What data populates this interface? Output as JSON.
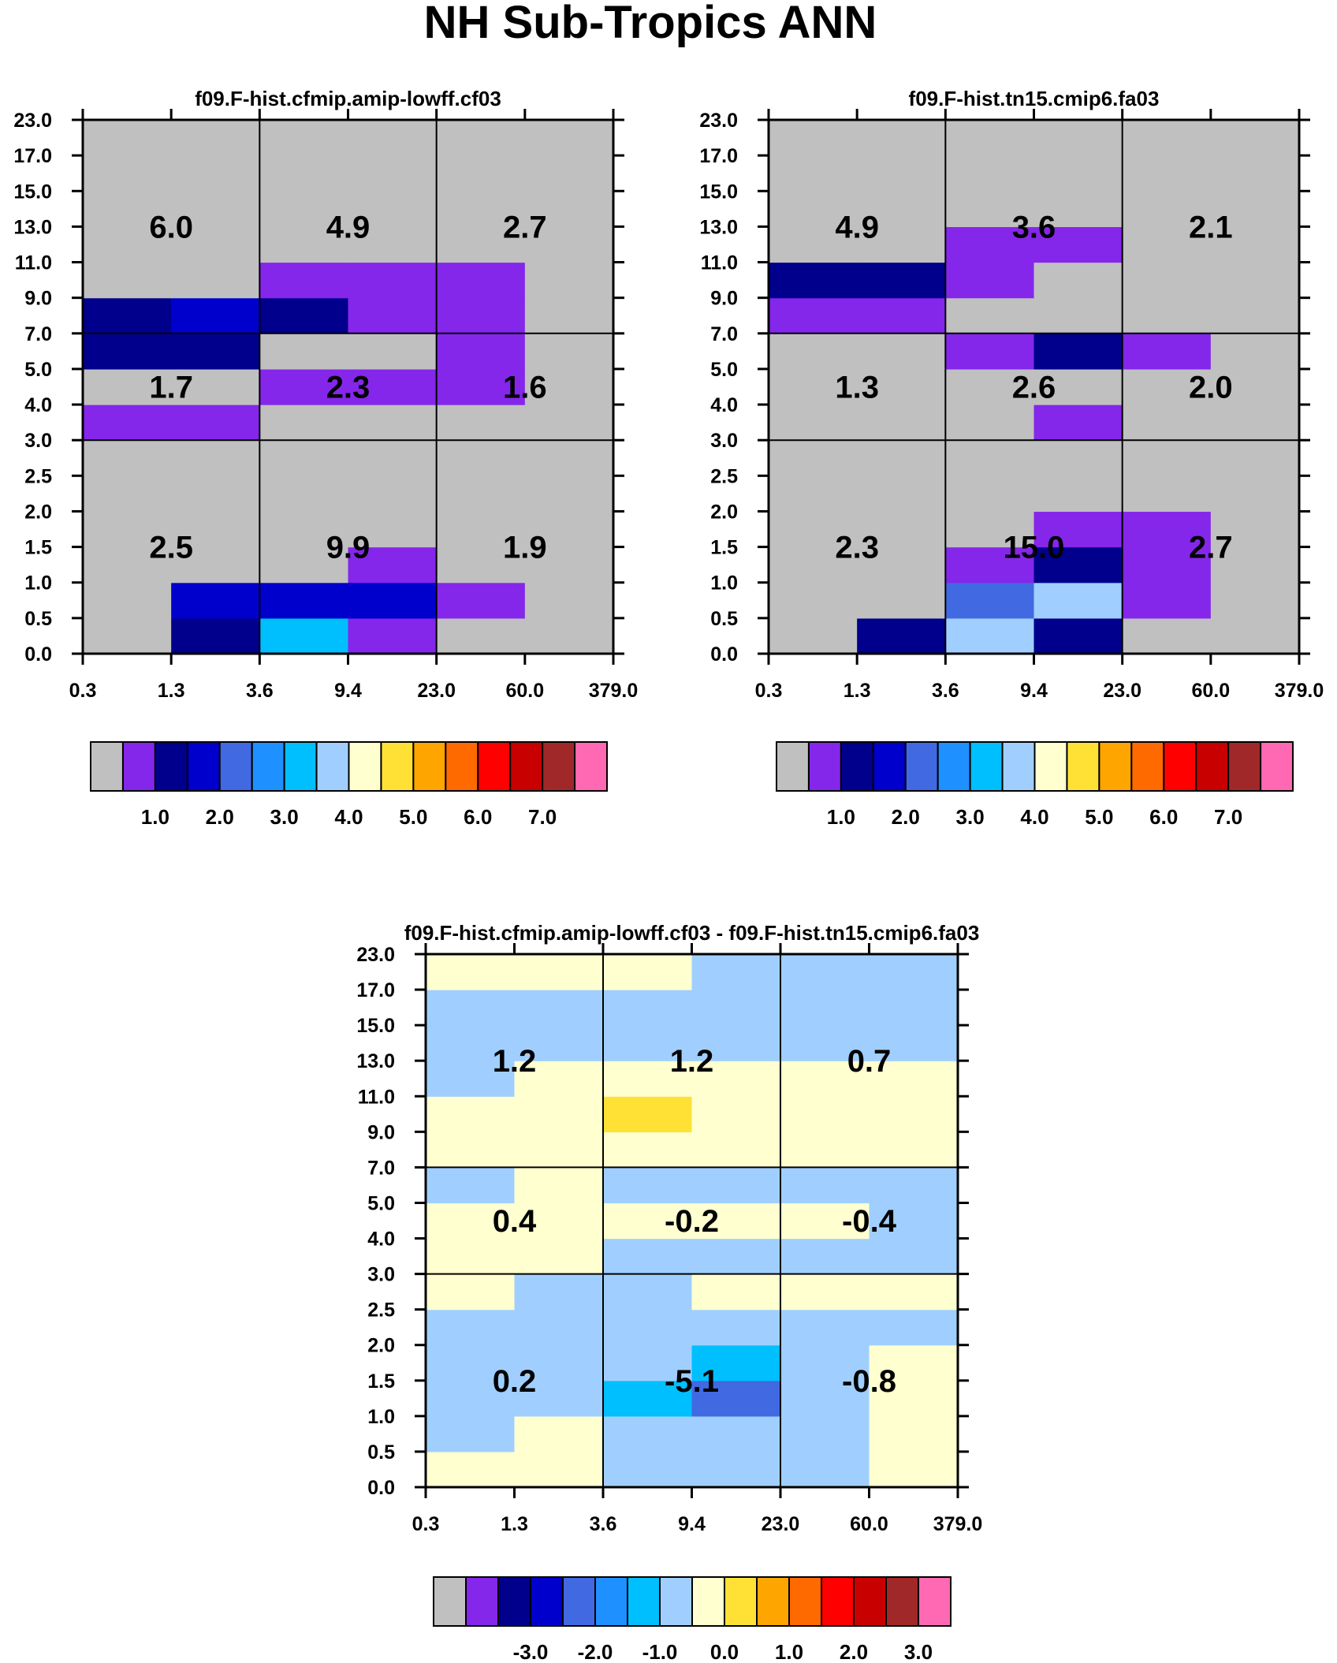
{
  "title": "NH Sub-Tropics ANN",
  "chart_data": [
    {
      "type": "heatmap",
      "id": "p1",
      "title": "f09.F-hist.cfmip.amip-lowff.cf03",
      "x_ticks": [
        "0.3",
        "1.3",
        "3.6",
        "9.4",
        "23.0",
        "60.0",
        "379.0"
      ],
      "y_ticks": [
        "0.0",
        "0.5",
        "1.0",
        "1.5",
        "2.0",
        "2.5",
        "3.0",
        "4.0",
        "5.0",
        "7.0",
        "9.0",
        "11.0",
        "13.0",
        "15.0",
        "17.0",
        "23.0"
      ],
      "block_boundaries": {
        "x_bins": [
          2,
          4
        ],
        "y_bins": [
          6,
          9
        ]
      },
      "colorbar": {
        "colors": [
          "#c0c0c0",
          "#8526eb",
          "#00008c",
          "#0000cd",
          "#4169e1",
          "#1e90ff",
          "#00bfff",
          "#a0cfff",
          "#ffffd0",
          "#ffe135",
          "#ffa500",
          "#ff6a00",
          "#ff0000",
          "#c80000",
          "#a02828",
          "#ff69b4"
        ],
        "labels": [
          "1.0",
          "2.0",
          "3.0",
          "4.0",
          "5.0",
          "6.0",
          "7.0"
        ],
        "label_start_boundary": 2
      },
      "levels_by_tau_row": [
        [
          0,
          2,
          6,
          1,
          0,
          0
        ],
        [
          0,
          3,
          3,
          3,
          1,
          0
        ],
        [
          0,
          0,
          0,
          1,
          0,
          0
        ],
        [
          0,
          0,
          0,
          0,
          0,
          0
        ],
        [
          0,
          0,
          0,
          0,
          0,
          0
        ],
        [
          0,
          0,
          0,
          0,
          0,
          0
        ],
        [
          1,
          1,
          0,
          0,
          0,
          0
        ],
        [
          0,
          0,
          1,
          1,
          1,
          0
        ],
        [
          2,
          2,
          0,
          0,
          1,
          0
        ],
        [
          2,
          3,
          2,
          1,
          1,
          0
        ],
        [
          0,
          0,
          1,
          1,
          1,
          0
        ],
        [
          0,
          0,
          0,
          0,
          0,
          0
        ],
        [
          0,
          0,
          0,
          0,
          0,
          0
        ],
        [
          0,
          0,
          0,
          0,
          0,
          0
        ],
        [
          0,
          0,
          0,
          0,
          0,
          0
        ]
      ],
      "block_values": [
        [
          "2.5",
          "9.9",
          "1.9"
        ],
        [
          "1.7",
          "2.3",
          "1.6"
        ],
        [
          "6.0",
          "4.9",
          "2.7"
        ]
      ]
    },
    {
      "type": "heatmap",
      "id": "p2",
      "title": "f09.F-hist.tn15.cmip6.fa03",
      "x_ticks": [
        "0.3",
        "1.3",
        "3.6",
        "9.4",
        "23.0",
        "60.0",
        "379.0"
      ],
      "y_ticks": [
        "0.0",
        "0.5",
        "1.0",
        "1.5",
        "2.0",
        "2.5",
        "3.0",
        "4.0",
        "5.0",
        "7.0",
        "9.0",
        "11.0",
        "13.0",
        "15.0",
        "17.0",
        "23.0"
      ],
      "block_boundaries": {
        "x_bins": [
          2,
          4
        ],
        "y_bins": [
          6,
          9
        ]
      },
      "colorbar": {
        "colors": [
          "#c0c0c0",
          "#8526eb",
          "#00008c",
          "#0000cd",
          "#4169e1",
          "#1e90ff",
          "#00bfff",
          "#a0cfff",
          "#ffffd0",
          "#ffe135",
          "#ffa500",
          "#ff6a00",
          "#ff0000",
          "#c80000",
          "#a02828",
          "#ff69b4"
        ],
        "labels": [
          "1.0",
          "2.0",
          "3.0",
          "4.0",
          "5.0",
          "6.0",
          "7.0"
        ],
        "label_start_boundary": 2
      },
      "levels_by_tau_row": [
        [
          0,
          2,
          7,
          2,
          0,
          0
        ],
        [
          0,
          0,
          4,
          7,
          1,
          0
        ],
        [
          0,
          0,
          1,
          2,
          1,
          0
        ],
        [
          0,
          0,
          0,
          1,
          1,
          0
        ],
        [
          0,
          0,
          0,
          0,
          0,
          0
        ],
        [
          0,
          0,
          0,
          0,
          0,
          0
        ],
        [
          0,
          0,
          0,
          1,
          0,
          0
        ],
        [
          0,
          0,
          0,
          0,
          0,
          0
        ],
        [
          0,
          0,
          1,
          2,
          1,
          0
        ],
        [
          1,
          1,
          0,
          0,
          0,
          0
        ],
        [
          2,
          2,
          1,
          0,
          0,
          0
        ],
        [
          0,
          0,
          1,
          1,
          0,
          0
        ],
        [
          0,
          0,
          0,
          0,
          0,
          0
        ],
        [
          0,
          0,
          0,
          0,
          0,
          0
        ],
        [
          0,
          0,
          0,
          0,
          0,
          0
        ]
      ],
      "block_values": [
        [
          "2.3",
          "15.0",
          "2.7"
        ],
        [
          "1.3",
          "2.6",
          "2.0"
        ],
        [
          "4.9",
          "3.6",
          "2.1"
        ]
      ]
    },
    {
      "type": "heatmap",
      "id": "p3",
      "title": "f09.F-hist.cfmip.amip-lowff.cf03 - f09.F-hist.tn15.cmip6.fa03",
      "x_ticks": [
        "0.3",
        "1.3",
        "3.6",
        "9.4",
        "23.0",
        "60.0",
        "379.0"
      ],
      "y_ticks": [
        "0.0",
        "0.5",
        "1.0",
        "1.5",
        "2.0",
        "2.5",
        "3.0",
        "4.0",
        "5.0",
        "7.0",
        "9.0",
        "11.0",
        "13.0",
        "15.0",
        "17.0",
        "23.0"
      ],
      "block_boundaries": {
        "x_bins": [
          2,
          4
        ],
        "y_bins": [
          6,
          9
        ]
      },
      "colorbar": {
        "colors": [
          "#c0c0c0",
          "#8526eb",
          "#00008c",
          "#0000cd",
          "#4169e1",
          "#1e90ff",
          "#00bfff",
          "#a0cfff",
          "#ffffd0",
          "#ffe135",
          "#ffa500",
          "#ff6a00",
          "#ff0000",
          "#c80000",
          "#a02828",
          "#ff69b4"
        ],
        "labels": [
          "-3.0",
          "-2.0",
          "-1.0",
          "0.0",
          "1.0",
          "2.0",
          "3.0"
        ],
        "label_start_boundary": 3
      },
      "levels_by_tau_row": [
        [
          8,
          8,
          7,
          7,
          7,
          8
        ],
        [
          7,
          8,
          7,
          7,
          7,
          8
        ],
        [
          7,
          7,
          6,
          4,
          7,
          8
        ],
        [
          7,
          7,
          7,
          6,
          7,
          8
        ],
        [
          7,
          7,
          7,
          7,
          7,
          7
        ],
        [
          8,
          7,
          7,
          8,
          8,
          8
        ],
        [
          8,
          8,
          7,
          7,
          7,
          7
        ],
        [
          8,
          8,
          8,
          8,
          8,
          7
        ],
        [
          7,
          8,
          7,
          7,
          7,
          7
        ],
        [
          8,
          8,
          8,
          8,
          8,
          8
        ],
        [
          8,
          8,
          9,
          8,
          8,
          8
        ],
        [
          7,
          8,
          8,
          8,
          8,
          8
        ],
        [
          7,
          7,
          7,
          7,
          7,
          7
        ],
        [
          7,
          7,
          7,
          7,
          7,
          7
        ],
        [
          8,
          8,
          8,
          7,
          7,
          7
        ]
      ],
      "block_values": [
        [
          "0.2",
          "-5.1",
          "-0.8"
        ],
        [
          "0.4",
          "-0.2",
          "-0.4"
        ],
        [
          "1.2",
          "1.2",
          "0.7"
        ]
      ]
    }
  ]
}
